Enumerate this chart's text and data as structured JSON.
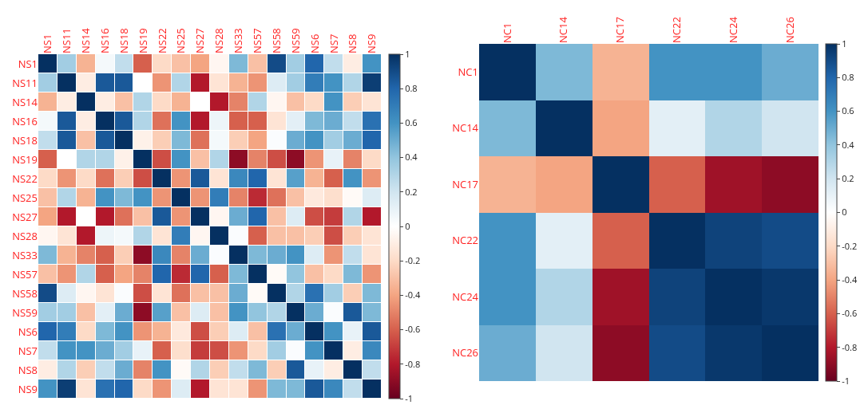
{
  "chart_data": [
    {
      "type": "heatmap",
      "categories": [
        "NS1",
        "NS11",
        "NS14",
        "NS16",
        "NS18",
        "NS19",
        "NS22",
        "NS25",
        "NS27",
        "NS28",
        "NS33",
        "NS57",
        "NS58",
        "NS59",
        "NS6",
        "NS7",
        "NS8",
        "NS9"
      ],
      "y_categories": [
        "NS1",
        "NS11",
        "NS14",
        "NS16",
        "NS18",
        "NS19",
        "NS22",
        "NS25",
        "NS27",
        "NS28",
        "NS33",
        "NS57",
        "NS58",
        "NS59",
        "NS6",
        "NS7",
        "NS8",
        "NS9"
      ],
      "cells": [
        [
          1,
          0.35,
          -0.35,
          0.05,
          0.25,
          -0.6,
          -0.2,
          -0.3,
          -0.4,
          -0.05,
          0.45,
          -0.3,
          0.9,
          0.35,
          0.8,
          0.25,
          -0.1,
          0.6
        ],
        [
          0.35,
          1,
          -0.1,
          0.85,
          0.85,
          0,
          -0.45,
          0.3,
          -0.8,
          -0.15,
          -0.35,
          -0.45,
          0.15,
          0.35,
          0.7,
          0.6,
          0.3,
          0.95
        ],
        [
          -0.35,
          -0.1,
          1,
          -0.1,
          -0.3,
          0.3,
          -0.2,
          -0.35,
          0,
          -0.8,
          -0.5,
          0.3,
          -0.05,
          -0.3,
          -0.2,
          0.6,
          -0.25,
          -0.15
        ],
        [
          0.05,
          0.85,
          -0.1,
          1,
          0.85,
          0.3,
          -0.55,
          0.6,
          -0.8,
          0.08,
          -0.6,
          -0.6,
          -0.15,
          0.12,
          0.45,
          0.5,
          0.25,
          0.75
        ],
        [
          0.25,
          0.85,
          -0.3,
          0.85,
          1,
          -0.08,
          -0.25,
          0.45,
          -0.55,
          0.05,
          -0.25,
          -0.4,
          0.02,
          0.5,
          0.6,
          0.35,
          0.5,
          0.8
        ],
        [
          -0.6,
          0,
          0.3,
          0.3,
          -0.08,
          1,
          -0.65,
          0.6,
          -0.3,
          0.3,
          -0.9,
          -0.5,
          -0.65,
          -0.9,
          -0.45,
          0.1,
          -0.5,
          -0.2
        ],
        [
          -0.2,
          -0.45,
          -0.2,
          -0.55,
          -0.25,
          -0.65,
          1,
          -0.45,
          0.85,
          -0.15,
          0.65,
          0.8,
          -0.15,
          0.55,
          -0.35,
          -0.6,
          0.6,
          -0.45
        ],
        [
          -0.3,
          0.3,
          -0.35,
          0.6,
          0.45,
          0.6,
          -0.45,
          1,
          -0.45,
          0.7,
          -0.5,
          -0.75,
          -0.55,
          -0.3,
          -0.12,
          -0.18,
          -0.03,
          0.15
        ],
        [
          -0.4,
          -0.8,
          0,
          -0.8,
          -0.55,
          -0.3,
          0.85,
          -0.45,
          1,
          -0.05,
          0.5,
          0.8,
          -0.3,
          0.15,
          -0.65,
          -0.7,
          0.3,
          -0.8
        ],
        [
          -0.05,
          -0.15,
          -0.8,
          0.08,
          0.05,
          0.3,
          -0.15,
          0.7,
          -0.05,
          1,
          0.02,
          -0.6,
          -0.3,
          -0.3,
          -0.25,
          -0.65,
          -0.25,
          -0.15
        ],
        [
          0.45,
          -0.35,
          -0.5,
          -0.6,
          -0.25,
          -0.9,
          0.65,
          -0.5,
          0.5,
          0.02,
          1,
          0.45,
          0.5,
          0.6,
          0.15,
          -0.45,
          0.25,
          -0.15
        ],
        [
          -0.3,
          -0.45,
          0.3,
          -0.6,
          -0.4,
          -0.5,
          0.8,
          -0.75,
          0.8,
          -0.6,
          0.45,
          1,
          -0.03,
          0.4,
          -0.3,
          -0.2,
          0.45,
          -0.45
        ],
        [
          0.9,
          0.15,
          -0.05,
          -0.15,
          0.02,
          -0.65,
          -0.15,
          -0.55,
          -0.3,
          -0.3,
          0.5,
          -0.03,
          1,
          0.3,
          0.75,
          0.35,
          -0.25,
          0.45
        ],
        [
          0.35,
          0.35,
          -0.3,
          0.12,
          0.5,
          -0.9,
          0.55,
          -0.3,
          0.15,
          -0.3,
          0.6,
          0.4,
          0.3,
          1,
          0.5,
          0.02,
          0.85,
          0.45
        ],
        [
          0.8,
          0.7,
          -0.2,
          0.45,
          0.6,
          -0.45,
          -0.35,
          -0.12,
          -0.65,
          -0.25,
          0.15,
          -0.3,
          0.75,
          0.5,
          1,
          0.6,
          0.1,
          0.85
        ],
        [
          0.25,
          0.6,
          0.6,
          0.5,
          0.35,
          0.1,
          -0.6,
          -0.18,
          -0.7,
          -0.65,
          -0.45,
          -0.2,
          0.35,
          0.02,
          0.6,
          1,
          -0.1,
          0.65
        ],
        [
          -0.1,
          0.3,
          -0.25,
          0.25,
          0.5,
          -0.5,
          0.6,
          -0.03,
          0.3,
          -0.25,
          0.25,
          0.45,
          -0.25,
          0.85,
          0.1,
          -0.1,
          1,
          0.25
        ],
        [
          0.6,
          0.95,
          -0.15,
          0.75,
          0.8,
          -0.2,
          -0.45,
          0.15,
          -0.8,
          -0.15,
          -0.15,
          -0.45,
          0.45,
          0.45,
          0.85,
          0.65,
          0.25,
          1
        ]
      ],
      "clim": [
        -1,
        1
      ],
      "cticks": [
        -1,
        -0.8,
        -0.6,
        -0.4,
        -0.2,
        0,
        0.2,
        0.4,
        0.6,
        0.8,
        1
      ]
    },
    {
      "type": "heatmap",
      "categories": [
        "NC1",
        "NC14",
        "NC17",
        "NC22",
        "NC24",
        "NC26"
      ],
      "y_categories": [
        "NC1",
        "NC14",
        "NC17",
        "NC22",
        "NC24",
        "NC26"
      ],
      "cells": [
        [
          1,
          0.45,
          -0.35,
          0.6,
          0.6,
          0.5
        ],
        [
          0.45,
          1,
          -0.4,
          0.12,
          0.3,
          0.2
        ],
        [
          -0.35,
          -0.4,
          1,
          -0.6,
          -0.85,
          -0.9
        ],
        [
          0.6,
          0.12,
          -0.6,
          1,
          0.93,
          0.9
        ],
        [
          0.6,
          0.3,
          -0.85,
          0.93,
          1,
          0.97
        ],
        [
          0.5,
          0.2,
          -0.9,
          0.9,
          0.97,
          1
        ]
      ],
      "clim": [
        -1,
        1
      ],
      "cticks": [
        -1,
        -0.8,
        -0.6,
        -0.4,
        -0.2,
        0,
        0.2,
        0.4,
        0.6,
        0.8,
        1
      ]
    }
  ]
}
